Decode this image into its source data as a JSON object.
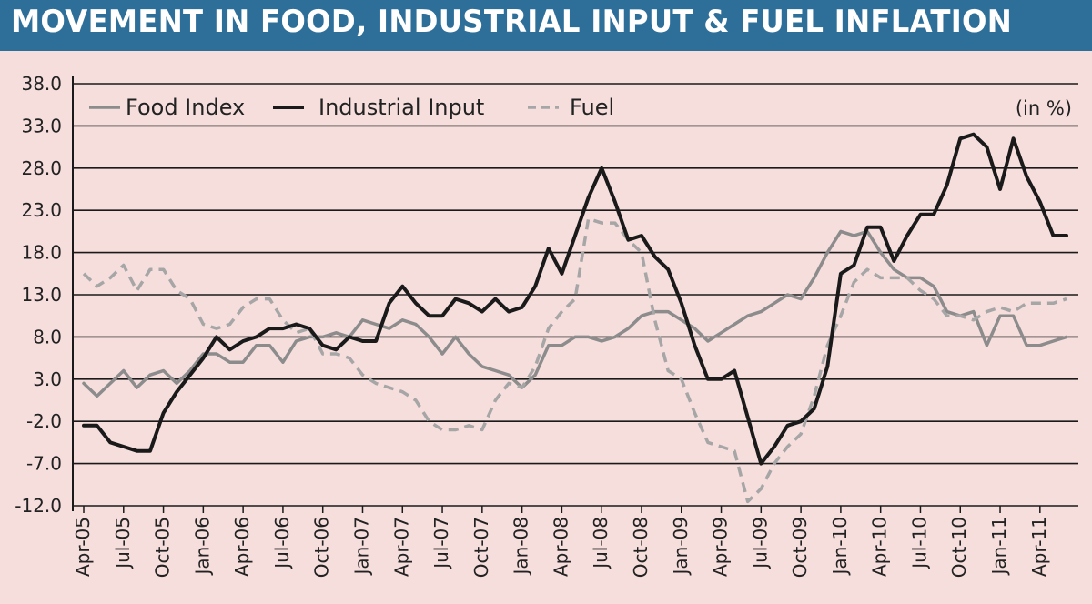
{
  "title": "MOVEMENT IN FOOD, INDUSTRIAL INPUT & FUEL INFLATION",
  "unit_note": "(in %)",
  "colors": {
    "banner": "#2e6f99",
    "background": "#f6dedd",
    "food": "#8c8c8c",
    "industrial": "#1a1a1a",
    "fuel": "#a6a6a6"
  },
  "chart_data": {
    "type": "line",
    "ylim": [
      -12,
      38
    ],
    "yticks": [
      "38.0",
      "33.0",
      "28.0",
      "23.0",
      "18.0",
      "13.0",
      "8.0",
      "3.0",
      "-2.0",
      "-7.0",
      "-12.0"
    ],
    "grid": true,
    "legend_position": "top-left",
    "x": [
      "Apr-05",
      "May-05",
      "Jun-05",
      "Jul-05",
      "Aug-05",
      "Sep-05",
      "Oct-05",
      "Nov-05",
      "Dec-05",
      "Jan-06",
      "Feb-06",
      "Mar-06",
      "Apr-06",
      "May-06",
      "Jun-06",
      "Jul-06",
      "Aug-06",
      "Sep-06",
      "Oct-06",
      "Nov-06",
      "Dec-06",
      "Jan-07",
      "Feb-07",
      "Mar-07",
      "Apr-07",
      "May-07",
      "Jun-07",
      "Jul-07",
      "Aug-07",
      "Sep-07",
      "Oct-07",
      "Nov-07",
      "Dec-07",
      "Jan-08",
      "Feb-08",
      "Mar-08",
      "Apr-08",
      "May-08",
      "Jun-08",
      "Jul-08",
      "Aug-08",
      "Sep-08",
      "Oct-08",
      "Nov-08",
      "Dec-08",
      "Jan-09",
      "Feb-09",
      "Mar-09",
      "Apr-09",
      "May-09",
      "Jun-09",
      "Jul-09",
      "Aug-09",
      "Sep-09",
      "Oct-09",
      "Nov-09",
      "Dec-09",
      "Jan-10",
      "Feb-10",
      "Mar-10",
      "Apr-10",
      "May-10",
      "Jun-10",
      "Jul-10",
      "Aug-10",
      "Sep-10",
      "Oct-10",
      "Nov-10",
      "Dec-10",
      "Jan-11",
      "Feb-11",
      "Mar-11",
      "Apr-11",
      "May-11",
      "Jun-11"
    ],
    "xtick_labels": [
      "Apr-05",
      "Jul-05",
      "Oct-05",
      "Jan-06",
      "Apr-06",
      "Jul-06",
      "Oct-06",
      "Jan-07",
      "Apr-07",
      "Jul-07",
      "Oct-07",
      "Jan-08",
      "Apr-08",
      "Jul-08",
      "Oct-08",
      "Jan-09",
      "Apr-09",
      "Jul-09",
      "Oct-09",
      "Jan-10",
      "Apr-10",
      "Jul-10",
      "Oct-10",
      "Jan-11",
      "Apr-11"
    ],
    "series": [
      {
        "name": "Food Index",
        "style": "solid",
        "values": [
          2.5,
          1.0,
          2.5,
          4.0,
          2.0,
          3.5,
          4.0,
          2.5,
          4.0,
          6.0,
          6.0,
          5.0,
          5.0,
          7.0,
          7.0,
          5.0,
          7.5,
          8.0,
          8.0,
          8.5,
          8.0,
          10.0,
          9.5,
          9.0,
          10.0,
          9.5,
          8.0,
          6.0,
          8.0,
          6.0,
          4.5,
          4.0,
          3.5,
          2.0,
          3.5,
          7.0,
          7.0,
          8.0,
          8.0,
          7.5,
          8.0,
          9.0,
          10.5,
          11.0,
          11.0,
          10.0,
          9.0,
          7.5,
          8.5,
          9.5,
          10.5,
          11.0,
          12.0,
          13.0,
          12.5,
          15.0,
          18.0,
          20.5,
          20.0,
          20.5,
          18.0,
          16.0,
          15.0,
          15.0,
          14.0,
          11.0,
          10.5,
          11.0,
          7.0,
          10.5,
          10.5,
          7.0,
          7.0,
          7.5,
          8.0
        ]
      },
      {
        "name": "Industrial Input",
        "style": "solid",
        "values": [
          -2.5,
          -2.5,
          -4.5,
          -5.0,
          -5.5,
          -5.5,
          -1.0,
          1.5,
          3.5,
          5.5,
          8.0,
          6.5,
          7.5,
          8.0,
          9.0,
          9.0,
          9.5,
          9.0,
          7.0,
          6.5,
          8.0,
          7.5,
          7.5,
          12.0,
          14.0,
          12.0,
          10.5,
          10.5,
          12.5,
          12.0,
          11.0,
          12.5,
          11.0,
          11.5,
          14.0,
          18.5,
          15.5,
          20.0,
          24.5,
          28.0,
          24.0,
          19.5,
          20.0,
          17.5,
          16.0,
          12.0,
          7.0,
          3.0,
          3.0,
          4.0,
          -1.5,
          -7.0,
          -5.0,
          -2.5,
          -2.0,
          -0.5,
          4.5,
          15.5,
          16.5,
          21.0,
          21.0,
          17.0,
          20.0,
          22.5,
          22.5,
          26.0,
          31.5,
          32.0,
          30.5,
          25.5,
          31.5,
          27.0,
          24.0,
          20.0,
          20.0
        ]
      },
      {
        "name": "Fuel",
        "style": "dashed",
        "values": [
          15.5,
          14.0,
          15.0,
          16.5,
          13.5,
          16.0,
          16.0,
          13.5,
          12.5,
          9.5,
          9.0,
          9.5,
          11.5,
          12.5,
          12.5,
          10.0,
          8.5,
          9.0,
          6.0,
          6.0,
          5.5,
          3.5,
          2.5,
          2.0,
          1.5,
          0.5,
          -2.0,
          -3.0,
          -3.0,
          -2.5,
          -3.0,
          0.5,
          2.5,
          2.0,
          4.5,
          9.0,
          11.0,
          12.5,
          22.0,
          21.5,
          21.5,
          19.5,
          18.0,
          10.0,
          4.0,
          3.0,
          -1.0,
          -4.5,
          -5.0,
          -5.5,
          -11.5,
          -10.0,
          -7.0,
          -5.0,
          -3.5,
          1.0,
          7.0,
          10.5,
          14.5,
          16.0,
          15.0,
          15.0,
          15.0,
          13.5,
          12.5,
          10.5,
          10.5,
          10.0,
          11.0,
          11.5,
          11.0,
          12.0,
          12.0,
          12.0,
          12.5
        ]
      }
    ]
  }
}
